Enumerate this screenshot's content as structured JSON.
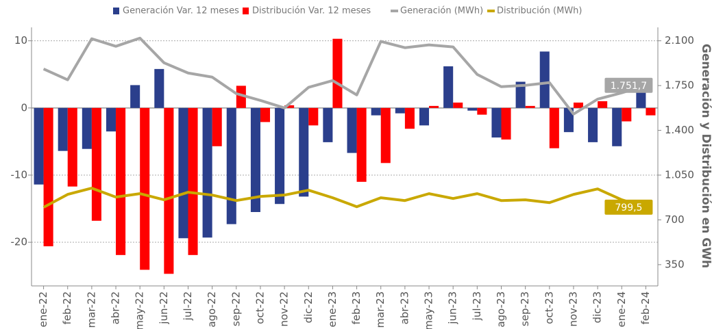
{
  "chart_data": {
    "type": "bar",
    "categories": [
      "ene-22",
      "feb-22",
      "mar-22",
      "abr-22",
      "may-22",
      "jun-22",
      "jul-22",
      "ago-22",
      "sep-22",
      "oct-22",
      "nov-22",
      "dic-22",
      "ene-23",
      "feb-23",
      "mar-23",
      "abr-23",
      "may-23",
      "jun-23",
      "jul-23",
      "ago-23",
      "sep-23",
      "oct-23",
      "nov-23",
      "dic-23",
      "ene-24",
      "feb-24"
    ],
    "y2label": "Generación y Distribución en GWh",
    "ylim": [
      -26.5,
      12
    ],
    "yticks": [
      -20,
      -10,
      0,
      10
    ],
    "y2lim": [
      183.75,
      2205
    ],
    "y2ticks": [
      {
        "value": 350,
        "label": "350"
      },
      {
        "value": 700,
        "label": "700"
      },
      {
        "value": 1050,
        "label": "1.050"
      },
      {
        "value": 1400,
        "label": "1.400"
      },
      {
        "value": 1750,
        "label": "1.750"
      },
      {
        "value": 2100,
        "label": "2.100"
      }
    ],
    "grid": true,
    "legend": "top",
    "series": [
      {
        "name": "Generación Var. 12 meses",
        "type": "bar",
        "color": "#2b3f8c",
        "values": [
          -11.4,
          -6.4,
          -6.1,
          -3.5,
          3.4,
          5.8,
          -19.4,
          -19.3,
          -17.3,
          -15.5,
          -14.3,
          -13.2,
          -5.1,
          -6.7,
          -1.1,
          -0.8,
          -2.6,
          6.2,
          -0.4,
          -4.4,
          3.9,
          8.4,
          -3.6,
          -5.1,
          -5.7,
          2.8
        ]
      },
      {
        "name": "Distribución Var. 12 meses",
        "type": "bar",
        "color": "#ff0000",
        "values": [
          -20.6,
          -11.7,
          -16.8,
          -21.9,
          -24.1,
          -24.7,
          -21.9,
          -5.7,
          3.3,
          -2.1,
          0.4,
          -2.6,
          10.3,
          -11.0,
          -8.2,
          -3.1,
          0.3,
          0.8,
          -1.0,
          -4.7,
          0.3,
          -6.0,
          0.8,
          1.0,
          -2.0,
          -1.1
        ]
      },
      {
        "name": "Generación (MWh)",
        "type": "line",
        "axis": "y2",
        "color": "#a6a6a6",
        "values": [
          1880,
          1795,
          2116,
          2057,
          2121,
          1928,
          1848,
          1816,
          1687,
          1634,
          1575,
          1736,
          1789,
          1677,
          2095,
          2046,
          2068,
          2052,
          1837,
          1741,
          1752,
          1773,
          1527,
          1644,
          1693,
          1751.7
        ],
        "value_labels": [
          null,
          null,
          null,
          null,
          null,
          null,
          null,
          null,
          null,
          null,
          null,
          null,
          null,
          null,
          null,
          null,
          null,
          null,
          null,
          null,
          null,
          null,
          null,
          null,
          null,
          "1.751,7"
        ]
      },
      {
        "name": "Distribución (MWh)",
        "type": "line",
        "axis": "y2",
        "color": "#c9a800",
        "values": [
          798,
          899,
          948,
          878,
          905,
          857,
          916,
          894,
          851,
          883,
          894,
          932,
          873,
          803,
          873,
          851,
          905,
          867,
          905,
          851,
          857,
          835,
          899,
          942,
          857,
          799.5
        ],
        "value_labels": [
          null,
          null,
          null,
          null,
          null,
          null,
          null,
          null,
          null,
          null,
          null,
          null,
          null,
          null,
          null,
          null,
          null,
          null,
          null,
          null,
          null,
          null,
          null,
          null,
          null,
          "799,5"
        ]
      }
    ]
  }
}
